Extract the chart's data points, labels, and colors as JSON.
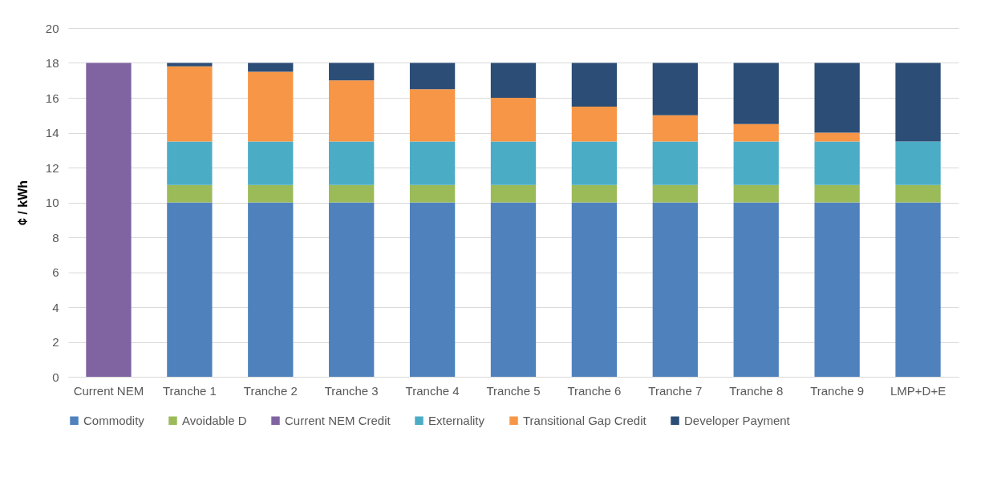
{
  "chart_data": {
    "type": "bar",
    "stacked": true,
    "ylabel": "¢ / kWh",
    "categories": [
      "Current NEM",
      "Tranche 1",
      "Tranche 2",
      "Tranche 3",
      "Tranche 4",
      "Tranche 5",
      "Tranche 6",
      "Tranche 7",
      "Tranche 8",
      "Tranche 9",
      "LMP+D+E"
    ],
    "series": [
      {
        "name": "Commodity",
        "color": "#4f81bd",
        "values": [
          null,
          10,
          10,
          10,
          10,
          10,
          10,
          10,
          10,
          10,
          10
        ]
      },
      {
        "name": "Avoidable D",
        "color": "#9bbb59",
        "values": [
          null,
          1,
          1,
          1,
          1,
          1,
          1,
          1,
          1,
          1,
          1
        ]
      },
      {
        "name": "Current NEM Credit",
        "color": "#8064a2",
        "values": [
          18,
          null,
          null,
          null,
          null,
          null,
          null,
          null,
          null,
          null,
          null
        ]
      },
      {
        "name": "Externality",
        "color": "#4bacc6",
        "values": [
          null,
          2.5,
          2.5,
          2.5,
          2.5,
          2.5,
          2.5,
          2.5,
          2.5,
          2.5,
          2.5
        ]
      },
      {
        "name": "Transitional Gap Credit",
        "color": "#f79646",
        "values": [
          null,
          4.3,
          4,
          3.5,
          3,
          2.5,
          2,
          1.5,
          1,
          0.5,
          null
        ]
      },
      {
        "name": "Developer Payment",
        "color": "#2c4d75",
        "values": [
          null,
          0.2,
          0.5,
          1,
          1.5,
          2,
          2.5,
          3,
          3.5,
          4,
          4.5
        ]
      }
    ],
    "ylim": [
      0,
      20
    ],
    "yticks": [
      0,
      2,
      4,
      6,
      8,
      10,
      12,
      14,
      16,
      18,
      20
    ],
    "grid": "y",
    "legend": "bottom"
  }
}
